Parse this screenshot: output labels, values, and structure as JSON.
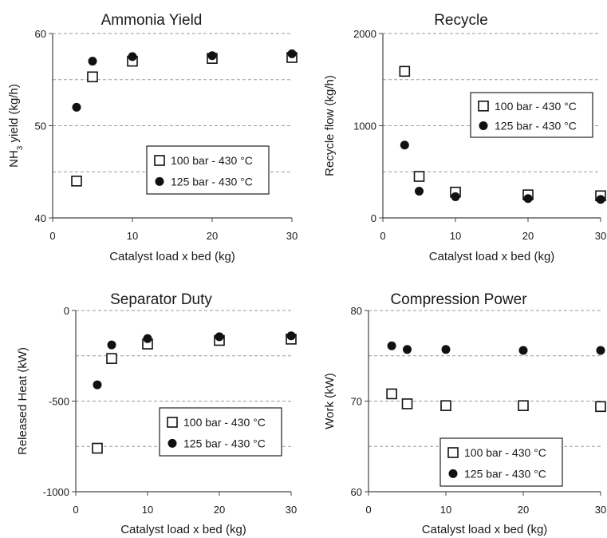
{
  "chart_data": [
    {
      "type": "scatter",
      "title": "Ammonia Yield",
      "xlabel": "Catalyst load x bed (kg)",
      "ylabel": {
        "pre": "NH",
        "sub": "3",
        "post": " yield (kg/h)"
      },
      "xlim": [
        0,
        30
      ],
      "ylim": [
        40,
        60
      ],
      "xticks": [
        "0",
        "10",
        "20",
        "30"
      ],
      "yticks": [
        "40",
        "50",
        "60"
      ],
      "grid": "horizontal dashed",
      "legend_position": "lower-right",
      "series": [
        {
          "name": "100 bar - 430 °C",
          "marker": "open-square",
          "x": [
            3,
            5,
            10,
            20,
            30
          ],
          "y": [
            44.0,
            55.3,
            57.0,
            57.3,
            57.4
          ]
        },
        {
          "name": "125 bar - 430 °C",
          "marker": "filled-circle",
          "x": [
            3,
            5,
            10,
            20,
            30
          ],
          "y": [
            52.0,
            57.0,
            57.5,
            57.6,
            57.8
          ]
        }
      ]
    },
    {
      "type": "scatter",
      "title": "Recycle",
      "xlabel": "Catalyst load x bed (kg)",
      "ylabel": "Recycle flow (kg/h)",
      "xlim": [
        0,
        30
      ],
      "ylim": [
        0,
        2000
      ],
      "xticks": [
        "0",
        "10",
        "20",
        "30"
      ],
      "yticks": [
        "0",
        "1000",
        "2000"
      ],
      "grid": "horizontal dashed",
      "legend_position": "upper-right",
      "series": [
        {
          "name": "100 bar - 430 °C",
          "marker": "open-square",
          "x": [
            3,
            5,
            10,
            20,
            30
          ],
          "y": [
            1590,
            450,
            280,
            250,
            240
          ]
        },
        {
          "name": "125 bar - 430 °C",
          "marker": "filled-circle",
          "x": [
            3,
            5,
            10,
            20,
            30
          ],
          "y": [
            790,
            290,
            230,
            210,
            200
          ]
        }
      ]
    },
    {
      "type": "scatter",
      "title": "Separator Duty",
      "xlabel": "Catalyst load x bed (kg)",
      "ylabel": "Released Heat (kW)",
      "xlim": [
        0,
        30
      ],
      "ylim": [
        -1000,
        0
      ],
      "xticks": [
        "0",
        "10",
        "20",
        "30"
      ],
      "yticks": [
        "-1000",
        "-500",
        "0"
      ],
      "grid": "horizontal dashed",
      "legend_position": "lower-right",
      "series": [
        {
          "name": "100 bar - 430 °C",
          "marker": "open-square",
          "x": [
            3,
            5,
            10,
            20,
            30
          ],
          "y": [
            -760,
            -265,
            -185,
            -165,
            -158
          ]
        },
        {
          "name": "125 bar - 430 °C",
          "marker": "filled-circle",
          "x": [
            3,
            5,
            10,
            20,
            30
          ],
          "y": [
            -410,
            -190,
            -155,
            -145,
            -140
          ]
        }
      ]
    },
    {
      "type": "scatter",
      "title": "Compression Power",
      "xlabel": "Catalyst load x bed (kg)",
      "ylabel": "Work (kW)",
      "xlim": [
        0,
        30
      ],
      "ylim": [
        60,
        80
      ],
      "xticks": [
        "0",
        "10",
        "20",
        "30"
      ],
      "yticks": [
        "60",
        "70",
        "80"
      ],
      "grid": "horizontal dashed",
      "legend_position": "bottom-center",
      "series": [
        {
          "name": "100 bar - 430 °C",
          "marker": "open-square",
          "x": [
            3,
            5,
            10,
            20,
            30
          ],
          "y": [
            70.8,
            69.7,
            69.5,
            69.5,
            69.4
          ]
        },
        {
          "name": "125 bar - 430 °C",
          "marker": "filled-circle",
          "x": [
            3,
            5,
            10,
            20,
            30
          ],
          "y": [
            76.1,
            75.7,
            75.7,
            75.6,
            75.6
          ]
        }
      ]
    }
  ]
}
